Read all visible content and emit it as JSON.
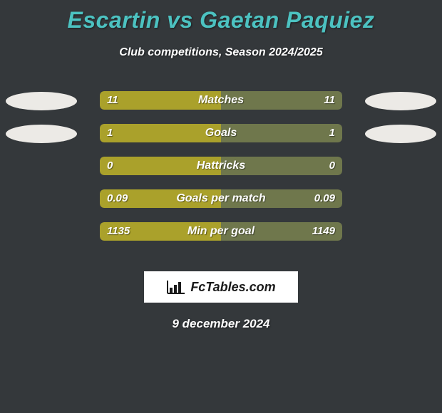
{
  "title_color": "#4cc2c1",
  "background_color": "#34383b",
  "left_color": "#aaa12b",
  "right_color": "#6f774c",
  "title": "Escartin vs Gaetan Paquiez",
  "subtitle": "Club competitions, Season 2024/2025",
  "rows": [
    {
      "label": "Matches",
      "left_val": "11",
      "right_val": "11",
      "show_ellipses": true
    },
    {
      "label": "Goals",
      "left_val": "1",
      "right_val": "1",
      "show_ellipses": true
    },
    {
      "label": "Hattricks",
      "left_val": "0",
      "right_val": "0",
      "show_ellipses": false
    },
    {
      "label": "Goals per match",
      "left_val": "0.09",
      "right_val": "0.09",
      "show_ellipses": false
    },
    {
      "label": "Min per goal",
      "left_val": "1135",
      "right_val": "1149",
      "show_ellipses": false
    }
  ],
  "logo_text": "FcTables.com",
  "footer_date": "9 december 2024"
}
